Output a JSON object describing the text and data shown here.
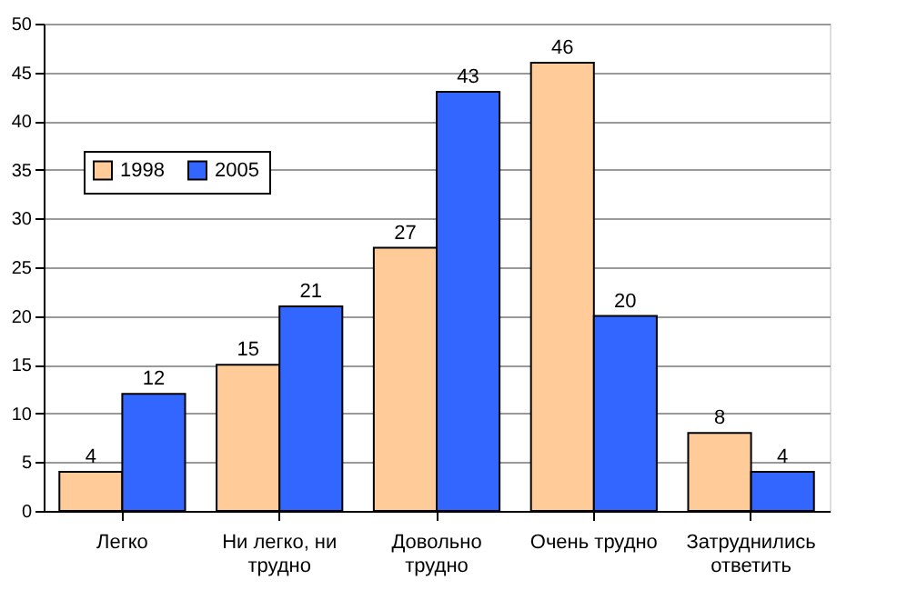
{
  "chart_data": {
    "type": "bar",
    "categories": [
      "Легко",
      "Ни легко, ни трудно",
      "Довольно трудно",
      "Очень трудно",
      "Затруднились ответить"
    ],
    "series": [
      {
        "name": "1998",
        "color": "#ffcc99",
        "values": [
          4,
          15,
          27,
          46,
          8
        ]
      },
      {
        "name": "2005",
        "color": "#3366ff",
        "values": [
          12,
          21,
          43,
          20,
          4
        ]
      }
    ],
    "ylim": [
      0,
      50
    ],
    "yticks": [
      0,
      5,
      10,
      15,
      20,
      25,
      30,
      35,
      40,
      45,
      50
    ],
    "grid": "y",
    "legend": "top left",
    "data_labels": true
  }
}
